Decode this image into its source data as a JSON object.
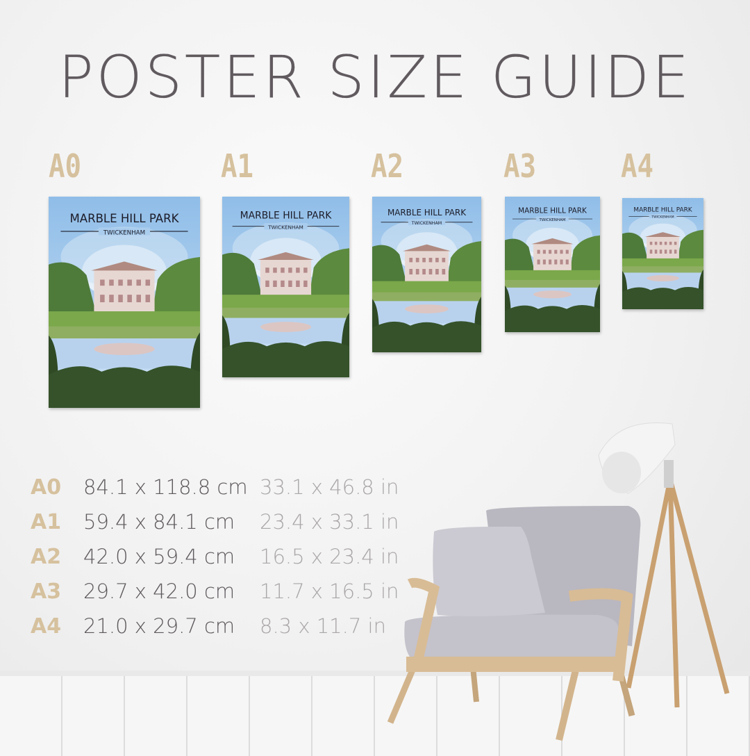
{
  "title": "POSTER SIZE GUIDE",
  "accent_color": "#d6c19e",
  "poster": {
    "title": "MARBLE HILL PARK",
    "subtitle": "TWICKENHAM"
  },
  "sizes": [
    {
      "code": "A0",
      "cm": "84.1 x 118.8 cm",
      "in": "33.1 x 46.8 in"
    },
    {
      "code": "A1",
      "cm": "59.4 x 84.1 cm",
      "in": "23.4 x 33.1 in"
    },
    {
      "code": "A2",
      "cm": "42.0 x 59.4 cm",
      "in": "16.5 x 23.4 in"
    },
    {
      "code": "A3",
      "cm": "29.7 x 42.0 cm",
      "in": "11.7 x 16.5 in"
    },
    {
      "code": "A4",
      "cm": "21.0 x 29.7 cm",
      "in": "8.3 x 11.7 in"
    }
  ]
}
